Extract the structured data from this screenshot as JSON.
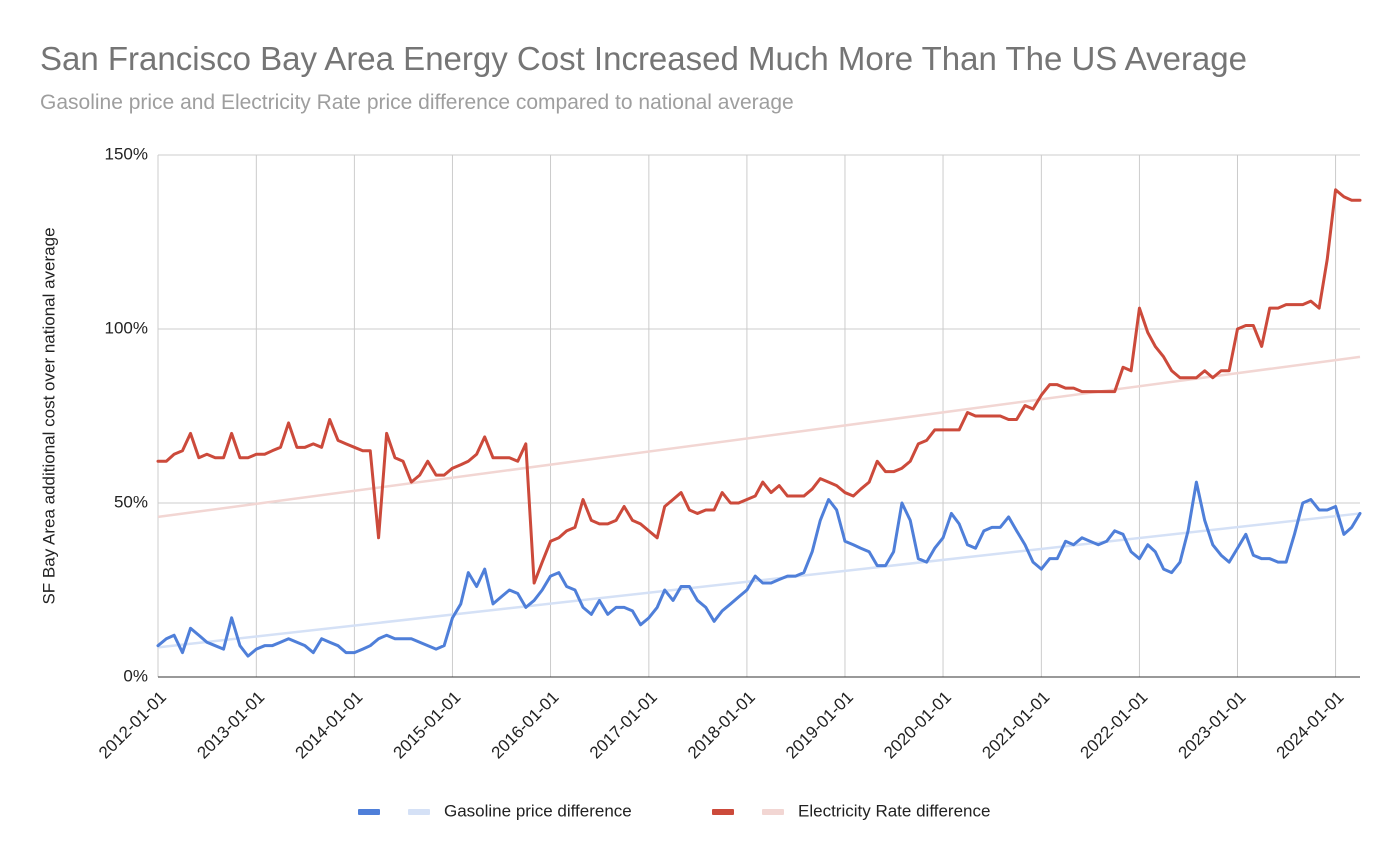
{
  "chart_data": {
    "type": "line",
    "title": "San Francisco Bay Area Energy Cost Increased Much More Than The US Average",
    "subtitle": "Gasoline price and Electricity Rate price difference compared to national average",
    "y_label": "SF Bay Area additional cost over national average",
    "x": [
      "2012-01-01",
      "2012-02-01",
      "2012-03-01",
      "2012-04-01",
      "2012-05-01",
      "2012-06-01",
      "2012-07-01",
      "2012-08-01",
      "2012-09-01",
      "2012-10-01",
      "2012-11-01",
      "2012-12-01",
      "2013-01-01",
      "2013-02-01",
      "2013-03-01",
      "2013-04-01",
      "2013-05-01",
      "2013-06-01",
      "2013-07-01",
      "2013-08-01",
      "2013-09-01",
      "2013-10-01",
      "2013-11-01",
      "2013-12-01",
      "2014-01-01",
      "2014-02-01",
      "2014-03-01",
      "2014-04-01",
      "2014-05-01",
      "2014-06-01",
      "2014-07-01",
      "2014-08-01",
      "2014-09-01",
      "2014-10-01",
      "2014-11-01",
      "2014-12-01",
      "2015-01-01",
      "2015-02-01",
      "2015-03-01",
      "2015-04-01",
      "2015-05-01",
      "2015-06-01",
      "2015-07-01",
      "2015-08-01",
      "2015-09-01",
      "2015-10-01",
      "2015-11-01",
      "2015-12-01",
      "2016-01-01",
      "2016-02-01",
      "2016-03-01",
      "2016-04-01",
      "2016-05-01",
      "2016-06-01",
      "2016-07-01",
      "2016-08-01",
      "2016-09-01",
      "2016-10-01",
      "2016-11-01",
      "2016-12-01",
      "2017-01-01",
      "2017-02-01",
      "2017-03-01",
      "2017-04-01",
      "2017-05-01",
      "2017-06-01",
      "2017-07-01",
      "2017-08-01",
      "2017-09-01",
      "2017-10-01",
      "2017-11-01",
      "2017-12-01",
      "2018-01-01",
      "2018-02-01",
      "2018-03-01",
      "2018-04-01",
      "2018-05-01",
      "2018-06-01",
      "2018-07-01",
      "2018-08-01",
      "2018-09-01",
      "2018-10-01",
      "2018-11-01",
      "2018-12-01",
      "2019-01-01",
      "2019-02-01",
      "2019-03-01",
      "2019-04-01",
      "2019-05-01",
      "2019-06-01",
      "2019-07-01",
      "2019-08-01",
      "2019-09-01",
      "2019-10-01",
      "2019-11-01",
      "2019-12-01",
      "2020-01-01",
      "2020-02-01",
      "2020-03-01",
      "2020-04-01",
      "2020-05-01",
      "2020-06-01",
      "2020-07-01",
      "2020-08-01",
      "2020-09-01",
      "2020-10-01",
      "2020-11-01",
      "2020-12-01",
      "2021-01-01",
      "2021-02-01",
      "2021-03-01",
      "2021-04-01",
      "2021-05-01",
      "2021-06-01",
      "2021-07-01",
      "2021-08-01",
      "2021-09-01",
      "2021-10-01",
      "2021-11-01",
      "2021-12-01",
      "2022-01-01",
      "2022-02-01",
      "2022-03-01",
      "2022-04-01",
      "2022-05-01",
      "2022-06-01",
      "2022-07-01",
      "2022-08-01",
      "2022-09-01",
      "2022-10-01",
      "2022-11-01",
      "2022-12-01",
      "2023-01-01",
      "2023-02-01",
      "2023-03-01",
      "2023-04-01",
      "2023-05-01",
      "2023-06-01",
      "2023-07-01",
      "2023-08-01",
      "2023-09-01",
      "2023-10-01",
      "2023-11-01",
      "2023-12-01",
      "2024-01-01",
      "2024-02-01",
      "2024-03-01",
      "2024-04-01"
    ],
    "series": [
      {
        "name": "Gasoline price difference",
        "color": "#4f7fd9",
        "trendline": {
          "color": "#d5e1f6",
          "x": [
            "2012-01-01",
            "2024-04-01"
          ],
          "values": [
            8.5,
            47
          ]
        },
        "values": [
          9,
          11,
          12,
          7,
          14,
          12,
          10,
          9,
          8,
          17,
          9,
          6,
          8,
          9,
          9,
          10,
          11,
          10,
          9,
          7,
          11,
          10,
          9,
          7,
          7,
          8,
          9,
          11,
          12,
          11,
          11,
          11,
          10,
          9,
          8,
          9,
          17,
          21,
          30,
          26,
          31,
          21,
          23,
          25,
          24,
          20,
          22,
          25,
          29,
          30,
          26,
          25,
          20,
          18,
          22,
          18,
          20,
          20,
          19,
          15,
          17,
          20,
          25,
          22,
          26,
          26,
          22,
          20,
          16,
          19,
          21,
          23,
          25,
          29,
          27,
          27,
          28,
          29,
          29,
          30,
          36,
          45,
          51,
          48,
          39,
          38,
          37,
          36,
          32,
          32,
          36,
          50,
          45,
          34,
          33,
          37,
          40,
          47,
          44,
          38,
          37,
          42,
          43,
          43,
          46,
          42,
          38,
          33,
          31,
          34,
          34,
          39,
          38,
          40,
          39,
          38,
          39,
          42,
          41,
          36,
          34,
          38,
          36,
          31,
          30,
          33,
          42,
          56,
          45,
          38,
          35,
          33,
          37,
          41,
          35,
          34,
          34,
          33,
          33,
          41,
          50,
          51,
          48,
          48,
          49,
          41,
          43,
          47
        ]
      },
      {
        "name": "Electricity Rate difference",
        "color": "#cc4a3b",
        "trendline": {
          "color": "#f2d6d3",
          "x": [
            "2012-01-01",
            "2024-04-01"
          ],
          "values": [
            46,
            92
          ]
        },
        "values": [
          62,
          62,
          64,
          65,
          70,
          63,
          64,
          63,
          63,
          70,
          63,
          63,
          64,
          64,
          65,
          66,
          73,
          66,
          66,
          67,
          66,
          74,
          68,
          67,
          66,
          65,
          65,
          40,
          70,
          63,
          62,
          56,
          58,
          62,
          58,
          58,
          60,
          61,
          62,
          64,
          69,
          63,
          63,
          63,
          62,
          67,
          27,
          33,
          39,
          40,
          42,
          43,
          51,
          45,
          44,
          44,
          45,
          49,
          45,
          44,
          42,
          40,
          49,
          51,
          53,
          48,
          47,
          48,
          48,
          53,
          50,
          50,
          51,
          52,
          56,
          53,
          55,
          52,
          52,
          52,
          54,
          57,
          56,
          55,
          53,
          52,
          54,
          56,
          62,
          59,
          59,
          60,
          62,
          67,
          68,
          71,
          71,
          71,
          71,
          76,
          75,
          75,
          75,
          75,
          74,
          74,
          78,
          77,
          81,
          84,
          84,
          83,
          83,
          82,
          82,
          82,
          82,
          82,
          89,
          88,
          106,
          99,
          95,
          92,
          88,
          86,
          86,
          86,
          88,
          86,
          88,
          88,
          100,
          101,
          101,
          95,
          106,
          106,
          107,
          107,
          107,
          108,
          106,
          120,
          140,
          138,
          137,
          137
        ]
      }
    ],
    "xlim": [
      "2012-01-01",
      "2024-04-01"
    ],
    "xticks": [
      "2012-01-01",
      "2013-01-01",
      "2014-01-01",
      "2015-01-01",
      "2016-01-01",
      "2017-01-01",
      "2018-01-01",
      "2019-01-01",
      "2020-01-01",
      "2021-01-01",
      "2022-01-01",
      "2023-01-01",
      "2024-01-01"
    ],
    "ylim": [
      0,
      150
    ],
    "yticks": [
      {
        "value": 0,
        "label": "0%"
      },
      {
        "value": 50,
        "label": "50%"
      },
      {
        "value": 100,
        "label": "100%"
      },
      {
        "value": 150,
        "label": "150%"
      }
    ],
    "grid": true,
    "legend": "bottom"
  }
}
